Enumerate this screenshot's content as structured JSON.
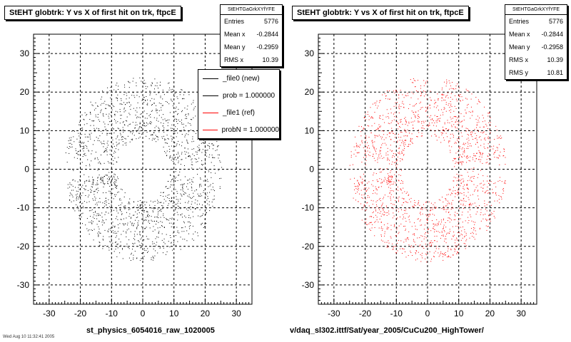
{
  "chart_data": [
    {
      "type": "scatter",
      "title": "StEHT globtrk: Y vs X of first hit on trk, ftpcE",
      "xlabel": "st_physics_6054016_raw_1020005",
      "xlim": [
        -35,
        35
      ],
      "ylim": [
        -35,
        35
      ],
      "xticks": [
        -30,
        -20,
        -10,
        0,
        10,
        20,
        30
      ],
      "yticks": [
        -30,
        -20,
        -10,
        0,
        10,
        20,
        30
      ],
      "grid": true,
      "marker_color": "#000000",
      "distribution": {
        "inner_radius": 8,
        "outer_radius": 24,
        "count": 5776
      },
      "stats": {
        "header": "StEHTGaGrkXYfYFE",
        "rows": [
          {
            "label": "Entries",
            "value": "5776"
          },
          {
            "label": "Mean x",
            "value": "-0.2844"
          },
          {
            "label": "Mean y",
            "value": "-0.2959"
          },
          {
            "label": "RMS x",
            "value": "10.39"
          }
        ]
      },
      "legend": {
        "position": "top-right",
        "entries": [
          {
            "label": "_file0 (new)",
            "color": "#000000"
          },
          {
            "label": "prob = 1.000000",
            "color": "#000000"
          },
          {
            "label": "_file1 (ref)",
            "color": "#ff0000"
          },
          {
            "label": "probN = 1.000000",
            "color": "#ff0000"
          }
        ]
      }
    },
    {
      "type": "scatter",
      "title": "StEHT globtrk: Y vs X of first hit on trk, ftpcE",
      "xlabel": "v/daq_sl302.ittf/Sat/year_2005/CuCu200_HighTower/",
      "xlim": [
        -35,
        35
      ],
      "ylim": [
        -35,
        35
      ],
      "xticks": [
        -30,
        -20,
        -10,
        0,
        10,
        20,
        30
      ],
      "yticks": [
        -30,
        -20,
        -10,
        0,
        10,
        20,
        30
      ],
      "grid": true,
      "marker_color": "#ff0000",
      "distribution": {
        "inner_radius": 8,
        "outer_radius": 24,
        "count": 5776
      },
      "stats": {
        "header": "StEHTGaGrkXYfYFE",
        "rows": [
          {
            "label": "Entries",
            "value": "5776"
          },
          {
            "label": "Mean x",
            "value": "-0.2844"
          },
          {
            "label": "Mean y",
            "value": "-0.2958"
          },
          {
            "label": "RMS x",
            "value": "10.39"
          },
          {
            "label": "RMS y",
            "value": "10.81"
          }
        ]
      }
    }
  ],
  "footer": "Wed Aug 10 11:32:41 2005"
}
